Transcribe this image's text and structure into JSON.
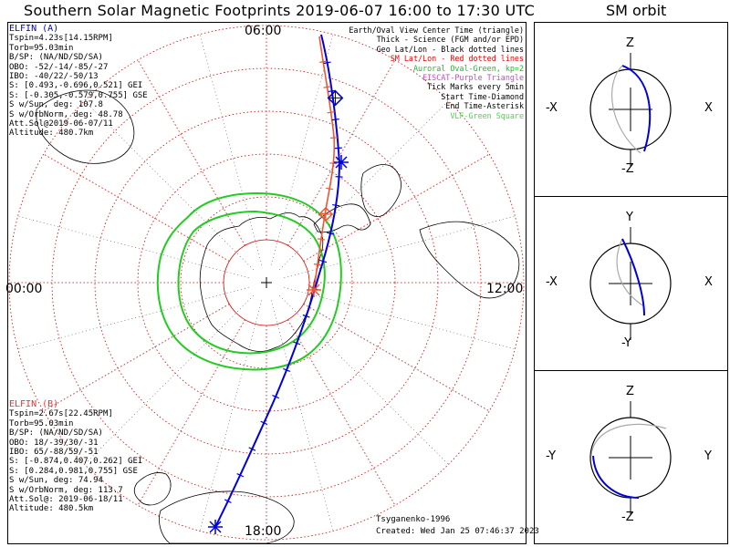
{
  "title": "Southern Solar Magnetic Footprints 2019-06-07 16:00 to 17:30 UTC",
  "sm_orbit_title": "SM orbit",
  "elfin_a": {
    "header": "ELFIN (A)",
    "color": "#0000dd",
    "lines": [
      "Tspin=4.23s[14.15RPM]",
      "Torb=95.03min",
      "B/SP: (NA/ND/SD/SA)",
      "OBO: -52/-14/-85/-27",
      "IBO: -40/22/-50/13",
      "S: [0.493,-0.696,0.521] GEI",
      "S: [-0.305,-0.579,0.755] GSE",
      "S w/Sun, deg: 107.8",
      "S w/OrbNorm, deg: 48.78",
      "Att.Sol@2019-06-07/11",
      "Altitude: 480.7km"
    ]
  },
  "elfin_b": {
    "header": "ELFIN (B)",
    "color": "#ee3333",
    "lines": [
      "Tspin=2.67s[22.45RPM]",
      "Torb=95.03min",
      "B/SP: (NA/ND/SD/SA)",
      "OBO: 18/-39/30/-31",
      "IBO: 65/-88/59/-51",
      "S: [-0.874,0.407,0.262] GEI",
      "S: [0.284,0.981,0.755] GSE",
      "S w/Sun, deg: 74.94",
      "S w/OrbNorm, deg: 113.7",
      "Att.Sol@: 2019-06-18/11",
      "Altitude: 480.5km"
    ]
  },
  "legend": [
    {
      "text": "Earth/Oval View Center Time (triangle)",
      "color": "#000000"
    },
    {
      "text": "Thick - Science (FGM and/or EPD)",
      "color": "#000000"
    },
    {
      "text": "Geo Lat/Lon - Black dotted lines",
      "color": "#000000"
    },
    {
      "text": "SM Lat/Lon - Red dotted lines",
      "color": "#ee0000"
    },
    {
      "text": "Auroral Oval-Green, kp=2",
      "color": "#22bb22"
    },
    {
      "text": "EISCAT-Purple Triangle",
      "color": "#cc44cc"
    },
    {
      "text": "Tick Marks every 5min",
      "color": "#000000"
    },
    {
      "text": "Start Time-Diamond",
      "color": "#000000"
    },
    {
      "text": "End Time-Asterisk",
      "color": "#000000"
    },
    {
      "text": "VLF-Green Square",
      "color": "#44dd44"
    }
  ],
  "mlt_labels": {
    "top": "06:00",
    "left": "00:00",
    "right": "12:00",
    "bottom": "18:00"
  },
  "credits": {
    "author": "Tsyganenko-1996",
    "created": "Created: Wed Jan 25 07:46:37 2023"
  },
  "orbit_panels": [
    {
      "top": "Z",
      "bottom": "-Z",
      "left": "-X",
      "right": "X"
    },
    {
      "top": "Y",
      "bottom": "-Y",
      "left": "-X",
      "right": "X"
    },
    {
      "top": "Z",
      "bottom": "-Z",
      "left": "-Y",
      "right": "Y"
    }
  ],
  "chart_data": {
    "type": "polar",
    "projection": "southern hemisphere magnetic footprints, polar view",
    "time_range": [
      "2019-06-07 16:00",
      "2019-06-07 17:30"
    ],
    "series": [
      {
        "name": "ELFIN (A)",
        "color": "#0000dd",
        "start_marker": "diamond",
        "end_marker": "asterisk"
      },
      {
        "name": "ELFIN (B)",
        "color": "#ee3333",
        "start_marker": "diamond",
        "end_marker": "asterisk"
      }
    ],
    "colors": {
      "auroral_oval": "#22cc22",
      "sm_grid": "#dd0000",
      "geo_grid": "#000000"
    }
  }
}
